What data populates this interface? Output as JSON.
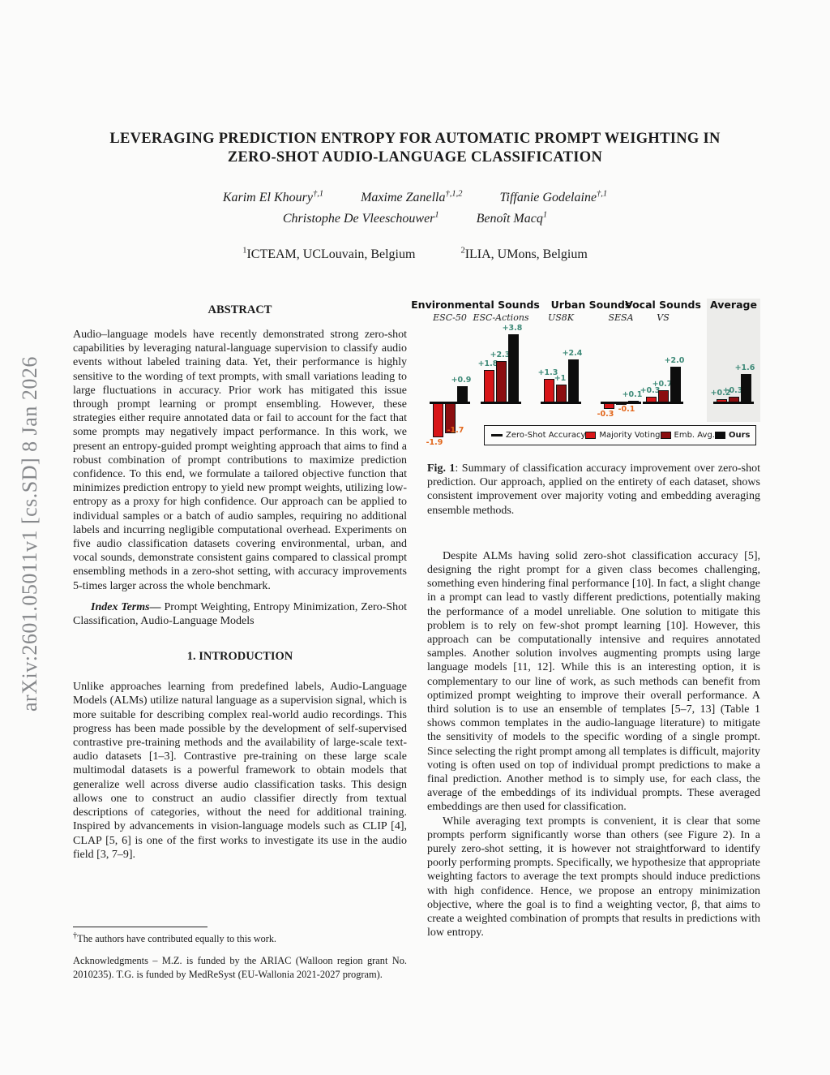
{
  "arxiv_banner": "arXiv:2601.05011v1  [cs.SD]  8 Jan 2026",
  "header": {
    "title_line1": "LEVERAGING PREDICTION ENTROPY FOR AUTOMATIC PROMPT WEIGHTING IN",
    "title_line2": "ZERO-SHOT AUDIO-LANGUAGE CLASSIFICATION",
    "authors_row1": [
      {
        "name": "Karim El Khoury",
        "sup": "†,1"
      },
      {
        "name": "Maxime Zanella",
        "sup": "†,1,2"
      },
      {
        "name": "Tiffanie Godelaine",
        "sup": "†,1"
      }
    ],
    "authors_row2": [
      {
        "name": "Christophe De Vleeschouwer",
        "sup": "1"
      },
      {
        "name": "Benoît Macq",
        "sup": "1"
      }
    ],
    "affiliations": [
      {
        "sup": "1",
        "text": "ICTEAM, UCLouvain, Belgium"
      },
      {
        "sup": "2",
        "text": "ILIA, UMons, Belgium"
      }
    ]
  },
  "abstract": {
    "heading": "ABSTRACT",
    "body": "Audio–language models have recently demonstrated strong zero-shot capabilities by leveraging natural-language supervision to classify audio events without labeled training data. Yet, their performance is highly sensitive to the wording of text prompts, with small variations leading to large fluctuations in accuracy. Prior work has mitigated this issue through prompt learning or prompt ensembling. However, these strategies either require annotated data or fail to account for the fact that some prompts may negatively impact performance. In this work, we present an entropy-guided prompt weighting approach that aims to find a robust combination of prompt contributions to maximize prediction confidence. To this end, we formulate a tailored objective function that minimizes prediction entropy to yield new prompt weights, utilizing low-entropy as a proxy for high confidence. Our approach can be applied to individual samples or a batch of audio samples, requiring no additional labels and incurring negligible computational overhead. Experiments on five audio classification datasets covering environmental, urban, and vocal sounds, demonstrate consistent gains compared to classical prompt ensembling methods in a zero-shot setting, with accuracy improvements 5-times larger across the whole benchmark.",
    "index_terms_label": "Index Terms—",
    "index_terms": " Prompt Weighting, Entropy Minimization, Zero-Shot Classification, Audio-Language Models"
  },
  "introduction": {
    "heading": "1.  INTRODUCTION",
    "body": "Unlike approaches learning from predefined labels, Audio-Language Models (ALMs) utilize natural language as a supervision signal, which is more suitable for describing complex real-world audio recordings. This progress has been made possible by the development of self-supervised contrastive pre-training methods and the availability of large-scale text-audio datasets [1–3]. Contrastive pre-training on these large scale multimodal datasets is a powerful framework to obtain models that generalize well across diverse audio classification tasks. This design allows one to construct an audio classifier directly from textual descriptions of categories, without the need for additional training. Inspired by advancements in vision-language models such as CLIP [4], CLAP [5, 6] is one of the first works to investigate its use in the audio field [3, 7–9]."
  },
  "right_column": {
    "para1": "Despite ALMs having solid zero-shot classification accuracy [5], designing the right prompt for a given class becomes challenging, something even hindering final performance [10]. In fact, a slight change in a prompt can lead to vastly different predictions, potentially making the performance of a model unreliable. One solution to mitigate this problem is to rely on few-shot prompt learning [10]. However, this approach can be computationally intensive and requires annotated samples. Another solution involves augmenting prompts using large language models [11, 12]. While this is an interesting option, it is complementary to our line of work, as such methods can benefit from optimized prompt weighting to improve their overall performance. A third solution is to use an ensemble of templates [5–7, 13] (Table 1 shows common templates in the audio-language literature) to mitigate the sensitivity of models to the specific wording of a single prompt. Since selecting the right prompt among all templates is difficult, majority voting is often used on top of individual prompt predictions to make a final prediction. Another method is to simply use, for each class, the average of the embeddings of its individual prompts. These averaged embeddings are then used for classification.",
    "para2": "While averaging text prompts is convenient, it is clear that some prompts perform significantly worse than others (see Figure 2). In a purely zero-shot setting, it is however not straightforward to identify poorly performing prompts. Specifically, we hypothesize that appropriate weighting factors to average the text prompts should induce predictions with high confidence. Hence, we propose an entropy minimization objective, where the goal is to find a weighting vector, β, that aims to create a weighted combination of prompts that results in predictions with low entropy."
  },
  "figure": {
    "caption_label": "Fig. 1",
    "caption_text": ": Summary of classification accuracy improvement over zero-shot prediction. Our approach, applied on the entirety of each dataset, shows consistent improvement over majority voting and embedding averaging ensemble methods."
  },
  "footnote": {
    "dagger": "†",
    "equal_contrib": "The authors have contributed equally to this work.",
    "acknowledgments": "Acknowledgments – M.Z. is funded by the ARIAC (Walloon region grant No. 2010235). T.G. is funded by MedReSyst (EU-Wallonia 2021-2027 program)."
  },
  "chart_data": {
    "type": "bar",
    "sections": [
      {
        "label": "Environmental Sounds",
        "datasets": [
          "ESC-50",
          "ESC-Actions"
        ],
        "highlight": false
      },
      {
        "label": "Urban Sounds",
        "datasets": [
          "US8K",
          "SESA"
        ],
        "highlight": false
      },
      {
        "label": "Vocal Sounds",
        "datasets": [
          "VS"
        ],
        "highlight": false
      },
      {
        "label": "Average",
        "datasets": [
          "Average"
        ],
        "highlight": true
      }
    ],
    "categories": [
      "ESC-50",
      "ESC-Actions",
      "US8K",
      "SESA",
      "VS",
      "Average"
    ],
    "sublabels": [
      "ESC-50",
      "ESC-Actions",
      "US8K",
      "SESA",
      "VS",
      ""
    ],
    "series": [
      {
        "name": "Majority Voting",
        "color": "#d81518",
        "values": [
          -1.9,
          1.8,
          1.3,
          -0.3,
          0.3,
          0.2
        ],
        "labels": [
          "-1.9",
          "+1.8",
          "+1.3",
          "-0.3",
          "+0.3",
          "+0.2"
        ]
      },
      {
        "name": "Emb. Avg.",
        "color": "#8b0e10",
        "values": [
          -1.7,
          2.3,
          1.0,
          -0.1,
          0.7,
          0.3
        ],
        "labels": [
          "-1.7",
          "+2.3",
          "+1",
          "-0.1",
          "+0.7",
          "+0.3"
        ]
      },
      {
        "name": "Ours",
        "color": "#0d0d0d",
        "values": [
          0.9,
          3.8,
          2.4,
          0.1,
          2.0,
          1.6
        ],
        "labels": [
          "+0.9",
          "+3.8",
          "+2.4",
          "+0.1",
          "+2.0",
          "+1.6"
        ]
      }
    ],
    "baseline": {
      "name": "Zero-Shot Accuracy",
      "value": 0
    },
    "legend": [
      {
        "name": "Zero-Shot Accuracy",
        "swatch": "line",
        "color": "#101010",
        "bold": false
      },
      {
        "name": "Majority Voting",
        "swatch": "box",
        "color": "#d81518",
        "bold": false
      },
      {
        "name": "Emb. Avg.",
        "swatch": "box",
        "color": "#8b0e10",
        "bold": false
      },
      {
        "name": "Ours",
        "swatch": "box",
        "color": "#0d0d0d",
        "bold": true
      }
    ],
    "label_colors": {
      "positive": "#3e8a78",
      "negative": "#e2661a"
    },
    "highlight_bg": "#ececea",
    "ylim": [
      -2.2,
      4.2
    ],
    "gridlines": false,
    "legend_position": "bottom"
  }
}
